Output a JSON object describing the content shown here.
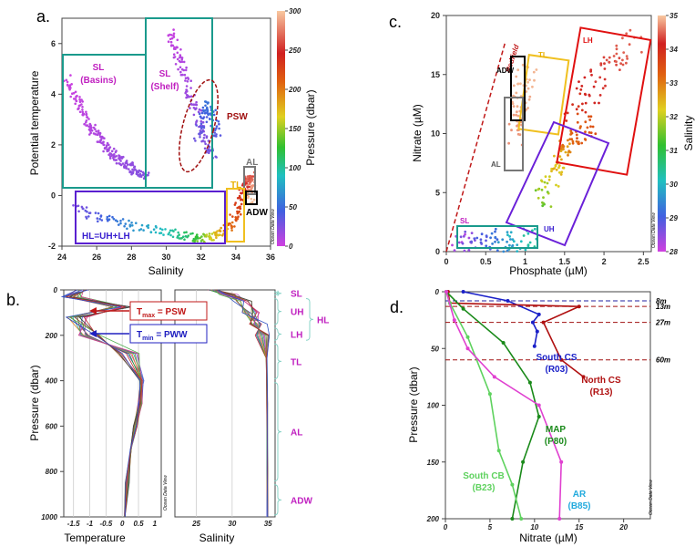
{
  "chart_data": [
    {
      "panel": "a.",
      "type": "scatter",
      "xlabel": "Salinity",
      "ylabel": "Potential temperature",
      "xlim": [
        24,
        36
      ],
      "ylim": [
        -2,
        7
      ],
      "x_ticks": [
        "24",
        "26",
        "28",
        "30",
        "32",
        "34",
        "36"
      ],
      "y_ticks": [
        "-2",
        "0",
        "2",
        "4",
        "6"
      ],
      "colorbar": {
        "label": "Pressure (dbar)",
        "ticks": [
          "0",
          "50",
          "100",
          "150",
          "200",
          "250",
          "300"
        ],
        "range": [
          0,
          300
        ]
      },
      "odv_label": "Ocean Data View",
      "regions": [
        {
          "label_lines": [
            "SL",
            "(Basins)"
          ],
          "color": "#c020c0",
          "box_color": "#1a9a8c"
        },
        {
          "label_lines": [
            "SL",
            "(Shelf)"
          ],
          "color": "#c020c0",
          "box_color": "#1a9a8c"
        },
        {
          "label_lines": [
            "PSW"
          ],
          "color": "#a01010",
          "box_color": "#a01010"
        },
        {
          "label_lines": [
            "AL"
          ],
          "color": "#777777",
          "box_color": "#777777"
        },
        {
          "label_lines": [
            "TL"
          ],
          "color": "#e8b000",
          "box_color": "#f0c020"
        },
        {
          "label_lines": [
            "ADW"
          ],
          "color": "#000000",
          "box_color": "#000000"
        },
        {
          "label_lines": [
            "HL=UH+LH"
          ],
          "color": "#3a20d0",
          "box_color": "#5a20d0"
        }
      ],
      "series": [
        {
          "x": [
            24.3,
            24.8,
            25.2,
            25.6,
            26.0,
            26.4,
            26.8,
            27.2,
            27.6,
            28.0,
            28.4,
            28.8
          ],
          "y": [
            4.6,
            3.9,
            3.3,
            2.8,
            2.4,
            2.1,
            1.7,
            1.5,
            1.3,
            1.1,
            0.9,
            0.8
          ],
          "pressure": [
            2,
            4,
            6,
            8,
            10,
            12,
            14,
            16,
            18,
            20,
            22,
            24
          ]
        },
        {
          "x": [
            30.2,
            30.5,
            30.8,
            31.2,
            31.6,
            32.0,
            32.4,
            32.7
          ],
          "y": [
            6.5,
            5.8,
            5.2,
            4.4,
            3.6,
            2.8,
            2.0,
            1.5
          ],
          "pressure": [
            3,
            6,
            10,
            14,
            18,
            22,
            26,
            30
          ]
        },
        {
          "x": [
            31.8,
            32.1,
            32.4,
            32.7,
            33.0
          ],
          "y": [
            2.3,
            3.0,
            3.6,
            3.1,
            2.2
          ],
          "pressure": [
            30,
            40,
            55,
            45,
            35
          ]
        },
        {
          "x": [
            24.8,
            26.0,
            27.5,
            29.0,
            30.5,
            31.5,
            32.2,
            32.8,
            33.3
          ],
          "y": [
            -0.5,
            -0.9,
            -1.1,
            -1.3,
            -1.5,
            -1.6,
            -1.7,
            -1.6,
            -1.4
          ],
          "pressure": [
            25,
            40,
            60,
            80,
            100,
            120,
            150,
            170,
            190
          ]
        },
        {
          "x": [
            33.5,
            33.8,
            34.2,
            34.5,
            34.7,
            34.85,
            34.9,
            34.92
          ],
          "y": [
            -1.3,
            -1.0,
            -0.4,
            0.2,
            0.6,
            0.8,
            0.4,
            -0.3
          ],
          "pressure": [
            200,
            215,
            230,
            245,
            255,
            265,
            280,
            300
          ]
        }
      ]
    },
    {
      "panel": "c.",
      "type": "scatter",
      "xlabel": "Phosphate (µM)",
      "ylabel": "Nitrate (µM)",
      "xlim": [
        0,
        2.6
      ],
      "ylim": [
        0,
        20
      ],
      "x_ticks": [
        "0",
        "0.5",
        "1",
        "1.5",
        "2",
        "2.5"
      ],
      "y_ticks": [
        "0",
        "5",
        "10",
        "15",
        "20"
      ],
      "colorbar": {
        "label": "Salinity",
        "ticks": [
          "28",
          "29",
          "30",
          "31",
          "32",
          "33",
          "34",
          "35"
        ],
        "range": [
          28,
          35
        ]
      },
      "odv_label": "Ocean Data View",
      "redfield_label": "Redfield",
      "regions": [
        {
          "label": "LH",
          "color": "#e01010"
        },
        {
          "label": "TL",
          "color": "#e8b000"
        },
        {
          "label": "ADW",
          "color": "#000000"
        },
        {
          "label": "AL",
          "color": "#777777"
        },
        {
          "label": "UH",
          "color": "#3a20d0"
        },
        {
          "label": "SL",
          "color": "#c020c0"
        }
      ],
      "series": [
        {
          "x": [
            0.15,
            0.3,
            0.5,
            0.7,
            0.9,
            1.1
          ],
          "y": [
            0.4,
            0.8,
            1.0,
            0.6,
            0.9,
            1.3
          ],
          "salinity": [
            28.2,
            28.6,
            29.0,
            29.5,
            30.0,
            30.4
          ]
        },
        {
          "x": [
            1.2,
            1.3,
            1.4,
            1.5,
            1.6,
            1.7,
            1.8
          ],
          "y": [
            4.0,
            5.5,
            7.0,
            8.5,
            9.5,
            10.0,
            11.0
          ],
          "salinity": [
            31.2,
            31.8,
            32.1,
            32.4,
            32.8,
            33.0,
            33.2
          ]
        },
        {
          "x": [
            0.85,
            0.9,
            0.95,
            1.0,
            1.05
          ],
          "y": [
            9.5,
            11.0,
            12.5,
            14.0,
            15.5
          ],
          "salinity": [
            34.6,
            34.7,
            34.8,
            34.85,
            34.9
          ]
        },
        {
          "x": [
            1.6,
            1.8,
            2.0,
            2.2,
            2.4
          ],
          "y": [
            12.0,
            13.5,
            15.0,
            16.5,
            18.0
          ],
          "salinity": [
            33.5,
            33.8,
            34.0,
            34.2,
            34.3
          ]
        }
      ]
    },
    {
      "panel": "b.",
      "type": "line",
      "ylabel": "Pressure (dbar)",
      "ylim": [
        0,
        1000
      ],
      "y_ticks": [
        "0",
        "200",
        "400",
        "600",
        "800",
        "1000"
      ],
      "subplots": [
        {
          "xlabel": "Temperature",
          "xlim": [
            -1.8,
            1.2
          ],
          "x_ticks": [
            "-1.5",
            "-1",
            "-0.5",
            "0",
            "0.5",
            "1"
          ],
          "mean_profile": {
            "x": [
              -1.2,
              -1.6,
              0.0,
              -1.4,
              -1.0,
              0.2,
              0.6,
              0.55,
              0.4,
              0.25,
              0.15,
              0.1
            ],
            "pressure": [
              0,
              30,
              75,
              120,
              200,
              280,
              400,
              500,
              600,
              700,
              850,
              1000
            ]
          }
        },
        {
          "xlabel": "Salinity",
          "xlim": [
            22,
            36
          ],
          "x_ticks": [
            "25",
            "30",
            "35"
          ],
          "mean_profile": {
            "x": [
              27.5,
              29.5,
              31.5,
              32.6,
              33.6,
              34.4,
              34.8,
              34.88,
              34.9,
              34.91
            ],
            "pressure": [
              0,
              20,
              50,
              100,
              150,
              200,
              300,
              500,
              800,
              1000
            ]
          }
        }
      ],
      "odv_label": "Ocean Data View",
      "annotations": {
        "tmax": {
          "symbol": "T",
          "sub": "max",
          "text": " = PSW",
          "color": "#c01818"
        },
        "tmin": {
          "symbol": "T",
          "sub": "min",
          "text": " = PWW",
          "color": "#2020c0"
        }
      },
      "layer_labels": [
        {
          "label": "SL",
          "range": [
            0,
            30
          ]
        },
        {
          "label": "UH",
          "range": [
            30,
            160
          ]
        },
        {
          "label": "LH",
          "range": [
            160,
            230
          ]
        },
        {
          "label": "HL",
          "range": [
            30,
            230
          ]
        },
        {
          "label": "TL",
          "range": [
            230,
            400
          ]
        },
        {
          "label": "AL",
          "range": [
            400,
            850
          ]
        },
        {
          "label": "ADW",
          "range": [
            850,
            1000
          ]
        }
      ]
    },
    {
      "panel": "d.",
      "type": "line",
      "xlabel": "Nitrate (µM)",
      "ylabel": "Pressure (dbar)",
      "xlim": [
        0,
        23
      ],
      "ylim": [
        0,
        200
      ],
      "x_ticks": [
        "0",
        "5",
        "10",
        "15",
        "20"
      ],
      "y_ticks": [
        "0",
        "50",
        "100",
        "150",
        "200"
      ],
      "odv_label": "Ocean Data View",
      "depth_lines": [
        {
          "label": "8m",
          "pressure": 8,
          "color": "#2020a0"
        },
        {
          "label": "13m",
          "pressure": 13,
          "color": "#a01010"
        },
        {
          "label": "27m",
          "pressure": 27,
          "color": "#a01010"
        },
        {
          "label": "60m",
          "pressure": 60,
          "color": "#a01010"
        }
      ],
      "series": [
        {
          "name": "South CS",
          "station": "(R03)",
          "color": "#1a20c8",
          "x": [
            2.0,
            7.0,
            10.5,
            9.8,
            10.3,
            10.0
          ],
          "y": [
            0,
            8,
            20,
            27,
            35,
            48
          ]
        },
        {
          "name": "North CS",
          "station": "(R13)",
          "color": "#b01010",
          "x": [
            0.3,
            0.5,
            15.0,
            11.0,
            13.0,
            15.5
          ],
          "y": [
            0,
            10,
            13,
            27,
            60,
            75
          ]
        },
        {
          "name": "MAP",
          "station": "(P80)",
          "color": "#1a8a1a",
          "x": [
            0.1,
            2.0,
            6.5,
            9.5,
            10.5,
            8.7,
            7.5
          ],
          "y": [
            0,
            15,
            45,
            80,
            110,
            150,
            200
          ]
        },
        {
          "name": "South CB",
          "station": "(B23)",
          "color": "#5fd25f",
          "x": [
            0.1,
            0.5,
            2.5,
            5.0,
            6.0,
            7.5,
            8.5
          ],
          "y": [
            0,
            10,
            40,
            90,
            140,
            170,
            200
          ]
        },
        {
          "name": "AR",
          "station": "(B85)",
          "color": "#e040d0",
          "x": [
            0.1,
            1.0,
            2.5,
            5.5,
            10.5,
            13.0,
            12.8
          ],
          "y": [
            0,
            25,
            50,
            75,
            100,
            150,
            200
          ]
        }
      ],
      "label_colors": {
        "AR": "#22aadd"
      }
    }
  ]
}
